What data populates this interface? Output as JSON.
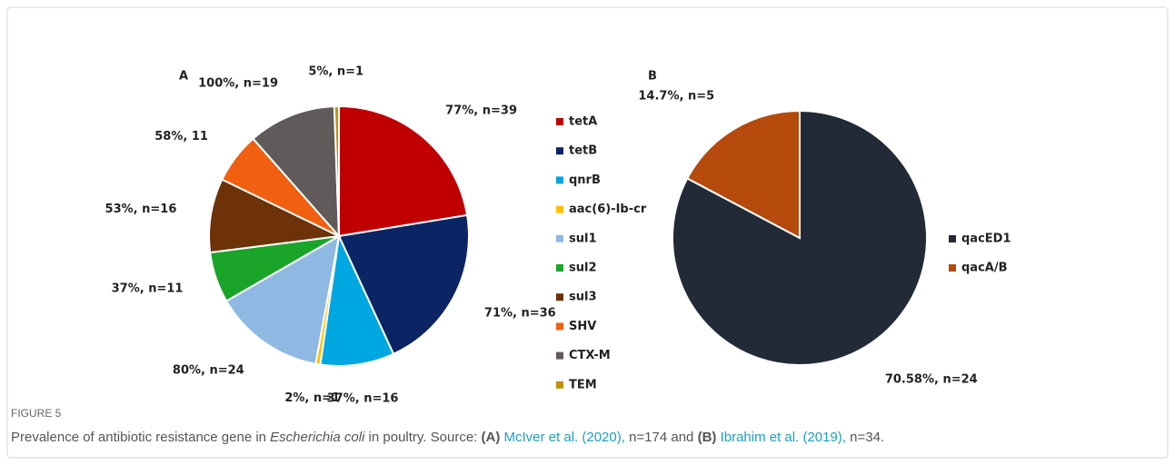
{
  "chart_data": [
    {
      "type": "pie",
      "title": "A",
      "categories": [
        "tetA",
        "tetB",
        "qnrB",
        "aac(6)-Ib-cr",
        "sul1",
        "sul2",
        "sul3",
        "SHV",
        "CTX-M",
        "TEM"
      ],
      "values": [
        39,
        36,
        16,
        1,
        24,
        11,
        16,
        11,
        19,
        1
      ],
      "value_labels": [
        "77%, n=39",
        "71%, n=36",
        "37%, n=16",
        "2%, n=1",
        "80%, n=24",
        "37%, n=11",
        "53%, n=16",
        "58%, 11",
        "100%, n=19",
        "5%, n=1"
      ],
      "colors": [
        "#c00000",
        "#0b2463",
        "#00a7e1",
        "#ffc000",
        "#8fb8e3",
        "#1aa52a",
        "#6e3208",
        "#f06010",
        "#605a5a",
        "#c09010"
      ],
      "legend": "right"
    },
    {
      "type": "pie",
      "title": "B",
      "categories": [
        "qacED1",
        "qacA/B"
      ],
      "values": [
        24,
        5
      ],
      "value_labels": [
        "70.58%, n=24",
        "14.7%, n=5"
      ],
      "colors": [
        "#222a38",
        "#b54a0c"
      ],
      "legend": "right"
    }
  ],
  "caption": {
    "label": "FIGURE 5",
    "text_1": "Prevalence of antibiotic resistance gene in ",
    "species": "Escherichia coli",
    "text_2": " in poultry. Source: ",
    "panel_a": "(A)",
    "ref_a": " McIver et al. (2020),",
    "text_3": " n=174 and ",
    "panel_b": "(B)",
    "ref_b": " Ibrahim et al. (2019),",
    "text_4": " n=34."
  }
}
